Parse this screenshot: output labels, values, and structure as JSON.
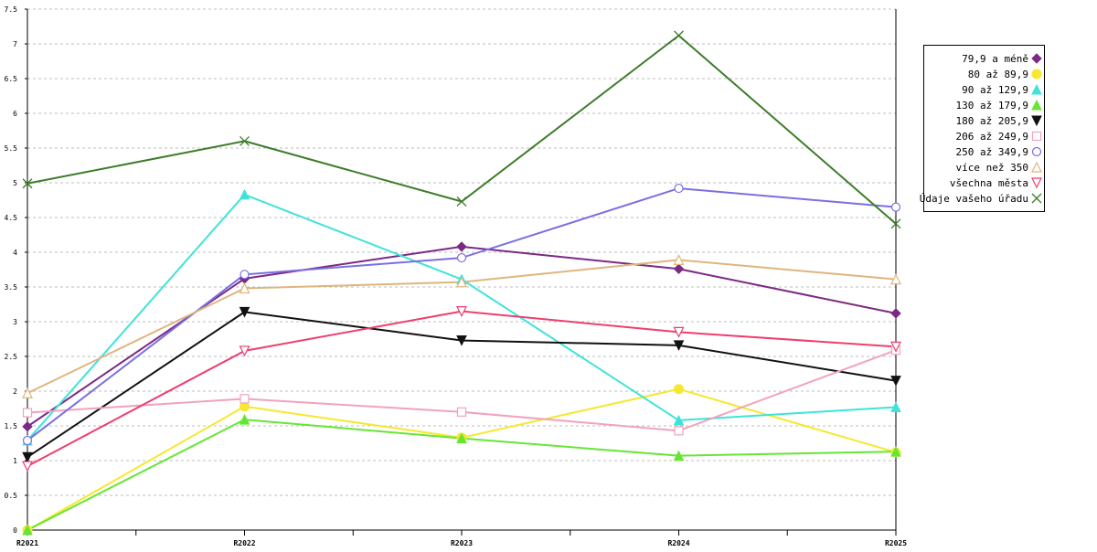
{
  "chart_data": {
    "type": "line",
    "title": "",
    "xlabel": "",
    "ylabel": "",
    "categories": [
      "R2021",
      "R2022",
      "R2023",
      "R2024",
      "R2025"
    ],
    "ylim": [
      0,
      7.5
    ],
    "yticks": [
      0,
      0.5,
      1,
      1.5,
      2,
      2.5,
      3,
      3.5,
      4,
      4.5,
      5,
      5.5,
      6,
      6.5,
      7,
      7.5
    ],
    "ytick_labels": [
      "0",
      "0.5",
      "1",
      "1.5",
      "2",
      "2.5",
      "3",
      "3.5",
      "4",
      "4.5",
      "5",
      "5.5",
      "6",
      "6.5",
      "7",
      "7.5"
    ],
    "grid": "horizontal dashed",
    "legend_position": "right",
    "series": [
      {
        "name": "79,9 a méně",
        "color": "#7b2a84",
        "marker": "diamond-filled",
        "values": [
          1.49,
          3.62,
          4.08,
          3.76,
          3.12
        ]
      },
      {
        "name": "80 až 89,9",
        "color": "#f5e82f",
        "marker": "circle-filled",
        "values": [
          0.0,
          1.78,
          1.33,
          2.03,
          1.12
        ]
      },
      {
        "name": "90 až 129,9",
        "color": "#3fe3d9",
        "marker": "triangle-up-filled",
        "values": [
          1.29,
          4.83,
          3.61,
          1.58,
          1.77
        ]
      },
      {
        "name": "130 až 179,9",
        "color": "#66e634",
        "marker": "triangle-up-filled",
        "values": [
          0.0,
          1.59,
          1.32,
          1.07,
          1.13
        ]
      },
      {
        "name": "180 až 205,9",
        "color": "#111111",
        "marker": "triangle-down-filled",
        "values": [
          1.05,
          3.14,
          2.73,
          2.66,
          2.15
        ]
      },
      {
        "name": "206 až 249,9",
        "color": "#f0a3be",
        "marker": "square-open",
        "values": [
          1.69,
          1.89,
          1.7,
          1.43,
          2.59
        ]
      },
      {
        "name": "250 až 349,9",
        "color": "#7a6fe0",
        "marker": "circle-open",
        "values": [
          1.29,
          3.68,
          3.92,
          4.92,
          4.65
        ]
      },
      {
        "name": "více než 350",
        "color": "#dfb57d",
        "marker": "triangle-up-open",
        "values": [
          1.97,
          3.48,
          3.57,
          3.89,
          3.61
        ]
      },
      {
        "name": "všechna města",
        "color": "#ee3f6f",
        "marker": "triangle-down-open",
        "values": [
          0.92,
          2.58,
          3.15,
          2.85,
          2.64
        ]
      },
      {
        "name": "Údaje vašeho úřadu",
        "color": "#3d7c2a",
        "marker": "cross",
        "values": [
          4.99,
          5.6,
          4.73,
          7.12,
          4.41
        ]
      }
    ]
  }
}
